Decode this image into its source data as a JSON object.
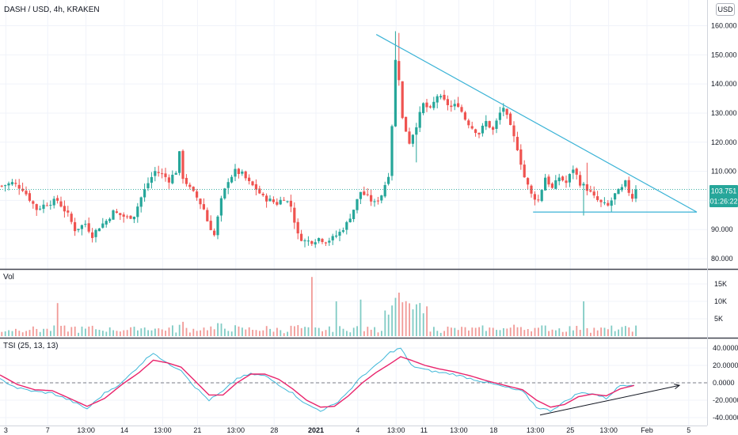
{
  "header": {
    "title": "DASH / USD, 4h, KRAKEN",
    "currency": "USD"
  },
  "panes": {
    "volume_label": "Vol",
    "tsi_label": "TSI (25, 13, 13)"
  },
  "price_tags": {
    "last_price": "103.751",
    "countdown": "01:26:22"
  },
  "colors": {
    "up": "#26a69a",
    "down": "#ef5350",
    "volume_up": "#80cbc4",
    "volume_down": "#f19a97",
    "trendline": "#3bb3d6",
    "tsi": "#40b7d8",
    "signal": "#e9246c",
    "annotation_arrow": "#131722",
    "price_tag": "#26a69a",
    "grid": "#f0f3fa",
    "separator": "#434651"
  },
  "chart_data": [
    {
      "type": "candlestick",
      "pane": "price",
      "title": "DASH / USD, 4h, KRAKEN",
      "x_tick_labels": [
        "3",
        "7",
        "13:00",
        "14",
        "13:00",
        "21",
        "13:00",
        "28",
        "2021",
        "4",
        "13:00",
        "11",
        "13:00",
        "18",
        "13:00",
        "25",
        "13:00",
        "Feb",
        "5"
      ],
      "y_tick_labels": [
        "80.000",
        "90.000",
        "100.000",
        "110.000",
        "120.000",
        "130.000",
        "140.000",
        "150.000",
        "160.000"
      ],
      "ylim": [
        78,
        164
      ],
      "close_path": [
        [
          0,
          105
        ],
        [
          3,
          106
        ],
        [
          6,
          104
        ],
        [
          10,
          97
        ],
        [
          13,
          99
        ],
        [
          16,
          100
        ],
        [
          19,
          95
        ],
        [
          21,
          90
        ],
        [
          24,
          92
        ],
        [
          26,
          88
        ],
        [
          28,
          91
        ],
        [
          30,
          93
        ],
        [
          32,
          96
        ],
        [
          34,
          95
        ],
        [
          36,
          94
        ],
        [
          38,
          95
        ],
        [
          40,
          101
        ],
        [
          42,
          106
        ],
        [
          44,
          110
        ],
        [
          46,
          109
        ],
        [
          48,
          107
        ],
        [
          50,
          110
        ],
        [
          51,
          116
        ],
        [
          52,
          108
        ],
        [
          54,
          104
        ],
        [
          56,
          101
        ],
        [
          58,
          97
        ],
        [
          59,
          93
        ],
        [
          61,
          88
        ],
        [
          63,
          100
        ],
        [
          65,
          107
        ],
        [
          67,
          110
        ],
        [
          69,
          109
        ],
        [
          71,
          106
        ],
        [
          73,
          104
        ],
        [
          75,
          101
        ],
        [
          77,
          100
        ],
        [
          79,
          99
        ],
        [
          81,
          101
        ],
        [
          83,
          98
        ],
        [
          85,
          88
        ],
        [
          87,
          86
        ],
        [
          89,
          86
        ],
        [
          91,
          87
        ],
        [
          93,
          86
        ],
        [
          95,
          87
        ],
        [
          97,
          89
        ],
        [
          99,
          92
        ],
        [
          101,
          97
        ],
        [
          103,
          103
        ],
        [
          105,
          101
        ],
        [
          107,
          99
        ],
        [
          109,
          102
        ],
        [
          111,
          109
        ],
        [
          112,
          126
        ],
        [
          113,
          148
        ],
        [
          114,
          142
        ],
        [
          115,
          128
        ],
        [
          117,
          120
        ],
        [
          119,
          126
        ],
        [
          121,
          133
        ],
        [
          123,
          131
        ],
        [
          125,
          136
        ],
        [
          127,
          134
        ],
        [
          129,
          132
        ],
        [
          131,
          133
        ],
        [
          133,
          128
        ],
        [
          135,
          125
        ],
        [
          137,
          123
        ],
        [
          139,
          127
        ],
        [
          141,
          124
        ],
        [
          143,
          130
        ],
        [
          144,
          132
        ],
        [
          146,
          125
        ],
        [
          148,
          118
        ],
        [
          150,
          108
        ],
        [
          152,
          102
        ],
        [
          154,
          100
        ],
        [
          156,
          108
        ],
        [
          158,
          104
        ],
        [
          160,
          108
        ],
        [
          162,
          106
        ],
        [
          164,
          111
        ],
        [
          166,
          106
        ],
        [
          168,
          104
        ],
        [
          170,
          101
        ],
        [
          172,
          99
        ],
        [
          174,
          98
        ],
        [
          176,
          102
        ],
        [
          178,
          104
        ],
        [
          179,
          106
        ],
        [
          180,
          103
        ],
        [
          181,
          101
        ],
        [
          182,
          103.75
        ]
      ],
      "last_price": 103.751,
      "annotations": [
        {
          "type": "trendline",
          "label": "",
          "points": [
            [
              108,
              157
            ],
            [
              200,
              96
            ]
          ]
        },
        {
          "type": "horizontal_line",
          "label": "",
          "y": 96,
          "x_range": [
            153,
            200
          ]
        }
      ]
    },
    {
      "type": "bar",
      "pane": "volume",
      "title": "Vol",
      "y_tick_labels": [
        "5K",
        "10K",
        "15K"
      ],
      "ylim": [
        0,
        18000
      ],
      "notable_spikes": [
        {
          "x": 16,
          "value": 9500
        },
        {
          "x": 89,
          "value": 17000
        },
        {
          "x": 96,
          "value": 10000
        },
        {
          "x": 103,
          "value": 10500
        },
        {
          "x": 114,
          "value": 12500
        },
        {
          "x": 167,
          "value": 10000
        }
      ]
    },
    {
      "type": "line",
      "pane": "oscillator",
      "title": "TSI (25, 13, 13)",
      "y_tick_labels": [
        "40.0000",
        "20.0000",
        "0.0000",
        "-20.0000",
        "-40.0000"
      ],
      "ylim": [
        -45,
        45
      ],
      "zero_line": true,
      "series": [
        {
          "name": "",
          "color": "#40b7d8",
          "values": [
            [
              0,
              4
            ],
            [
              5,
              -6
            ],
            [
              10,
              -10
            ],
            [
              15,
              -12
            ],
            [
              20,
              -20
            ],
            [
              25,
              -30
            ],
            [
              30,
              -12
            ],
            [
              35,
              0
            ],
            [
              40,
              20
            ],
            [
              44,
              35
            ],
            [
              48,
              22
            ],
            [
              52,
              15
            ],
            [
              56,
              -5
            ],
            [
              60,
              -20
            ],
            [
              64,
              -10
            ],
            [
              68,
              5
            ],
            [
              72,
              10
            ],
            [
              76,
              8
            ],
            [
              80,
              -2
            ],
            [
              84,
              -12
            ],
            [
              88,
              -25
            ],
            [
              92,
              -32
            ],
            [
              96,
              -25
            ],
            [
              100,
              -10
            ],
            [
              104,
              8
            ],
            [
              108,
              20
            ],
            [
              112,
              35
            ],
            [
              115,
              40
            ],
            [
              118,
              20
            ],
            [
              122,
              15
            ],
            [
              126,
              12
            ],
            [
              130,
              10
            ],
            [
              135,
              5
            ],
            [
              140,
              0
            ],
            [
              145,
              -5
            ],
            [
              150,
              -10
            ],
            [
              154,
              -28
            ],
            [
              158,
              -32
            ],
            [
              162,
              -22
            ],
            [
              166,
              -12
            ],
            [
              170,
              -12
            ],
            [
              174,
              -18
            ],
            [
              178,
              -3
            ],
            [
              182,
              -2
            ]
          ]
        },
        {
          "name": "",
          "color": "#e9246c",
          "values": [
            [
              0,
              9
            ],
            [
              5,
              -2
            ],
            [
              10,
              -8
            ],
            [
              15,
              -9
            ],
            [
              20,
              -18
            ],
            [
              25,
              -27
            ],
            [
              30,
              -18
            ],
            [
              35,
              -2
            ],
            [
              40,
              12
            ],
            [
              44,
              26
            ],
            [
              48,
              23
            ],
            [
              52,
              18
            ],
            [
              56,
              2
            ],
            [
              60,
              -14
            ],
            [
              64,
              -14
            ],
            [
              68,
              0
            ],
            [
              72,
              10
            ],
            [
              76,
              10
            ],
            [
              80,
              4
            ],
            [
              84,
              -7
            ],
            [
              88,
              -20
            ],
            [
              92,
              -28
            ],
            [
              96,
              -27
            ],
            [
              100,
              -15
            ],
            [
              104,
              0
            ],
            [
              108,
              12
            ],
            [
              112,
              22
            ],
            [
              115,
              30
            ],
            [
              118,
              26
            ],
            [
              122,
              20
            ],
            [
              126,
              16
            ],
            [
              130,
              13
            ],
            [
              135,
              8
            ],
            [
              140,
              2
            ],
            [
              145,
              -3
            ],
            [
              150,
              -8
            ],
            [
              154,
              -20
            ],
            [
              158,
              -28
            ],
            [
              162,
              -25
            ],
            [
              166,
              -16
            ],
            [
              170,
              -13
            ],
            [
              174,
              -15
            ],
            [
              178,
              -7
            ],
            [
              182,
              -3
            ]
          ]
        }
      ],
      "annotations": [
        {
          "type": "arrow",
          "label": "",
          "from": [
            155,
            -37
          ],
          "to": [
            195,
            -3
          ]
        }
      ]
    }
  ]
}
